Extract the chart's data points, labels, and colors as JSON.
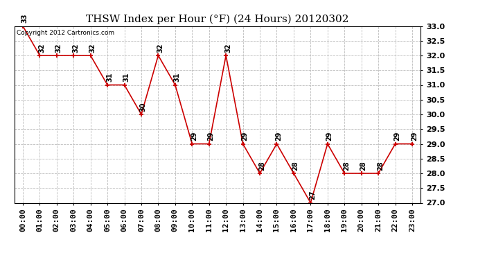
{
  "title": "THSW Index per Hour (°F) (24 Hours) 20120302",
  "copyright_text": "Copyright 2012 Cartronics.com",
  "hours": [
    "00:00",
    "01:00",
    "02:00",
    "03:00",
    "04:00",
    "05:00",
    "06:00",
    "07:00",
    "08:00",
    "09:00",
    "10:00",
    "11:00",
    "12:00",
    "13:00",
    "14:00",
    "15:00",
    "16:00",
    "17:00",
    "18:00",
    "19:00",
    "20:00",
    "21:00",
    "22:00",
    "23:00"
  ],
  "values": [
    33,
    32,
    32,
    32,
    32,
    31,
    31,
    30,
    32,
    31,
    29,
    29,
    32,
    29,
    28,
    29,
    28,
    27,
    29,
    28,
    28,
    28,
    29,
    29
  ],
  "line_color": "#cc0000",
  "marker_color": "#cc0000",
  "background_color": "#ffffff",
  "grid_color": "#bbbbbb",
  "ylim_min": 27.0,
  "ylim_max": 33.0,
  "ytick_step": 0.5,
  "title_fontsize": 11,
  "label_fontsize": 8,
  "annotation_fontsize": 7,
  "copyright_fontsize": 6.5
}
